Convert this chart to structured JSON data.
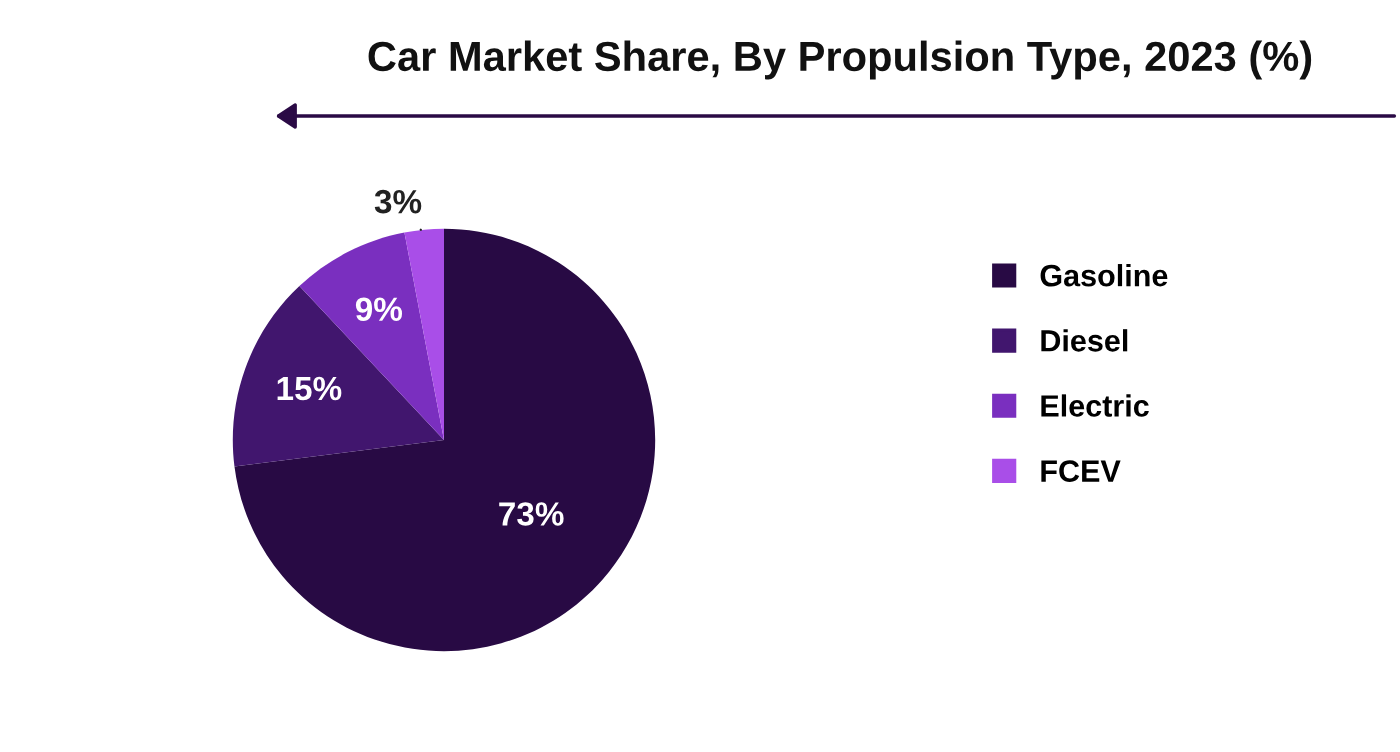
{
  "chart_data": {
    "type": "pie",
    "title": "Car Market Share, By Propulsion Type, 2023 (%)",
    "categories": [
      "Gasoline",
      "Diesel",
      "Electric",
      "FCEV"
    ],
    "values": [
      73,
      15,
      9,
      3
    ],
    "colors": [
      "#280a44",
      "#41166e",
      "#7a2fbf",
      "#a94ee8"
    ],
    "value_labels": [
      "73%",
      "15%",
      "9%",
      "3%"
    ],
    "legend": "right"
  }
}
